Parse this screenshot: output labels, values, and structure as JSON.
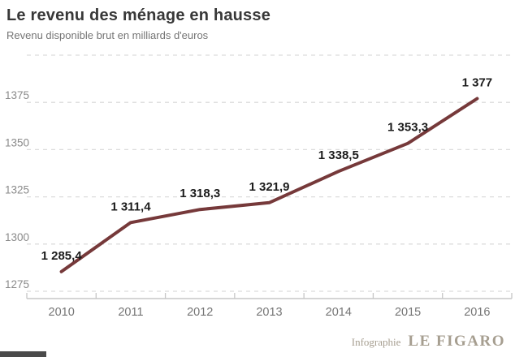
{
  "header": {
    "title": "Le revenu des ménage en hausse",
    "subtitle": "Revenu disponible brut en milliards d'euros"
  },
  "chart_data": {
    "type": "line",
    "title": "Le revenu des ménage en hausse",
    "subtitle": "Revenu disponible brut en milliards d'euros",
    "unit": "milliards d'euros",
    "categories": [
      "2010",
      "2011",
      "2012",
      "2013",
      "2014",
      "2015",
      "2016"
    ],
    "values": [
      1285.4,
      1311.4,
      1318.3,
      1321.9,
      1338.5,
      1353.3,
      1377
    ],
    "value_labels": [
      "1 285,4",
      "1 311,4",
      "1 318,3",
      "1 321,9",
      "1 338,5",
      "1 353,3",
      "1 377"
    ],
    "ylim": [
      1275,
      1400
    ],
    "y_gridlines": [
      {
        "value": 1400,
        "label": ""
      },
      {
        "value": 1375,
        "label": "1375"
      },
      {
        "value": 1350,
        "label": "1350"
      },
      {
        "value": 1325,
        "label": "1325"
      },
      {
        "value": 1300,
        "label": "1300"
      },
      {
        "value": 1275,
        "label": "1275"
      }
    ],
    "grid": "dashed-horizontal",
    "legend": "none",
    "line_color": "#76393a"
  },
  "footer": {
    "credit": "Infographie",
    "brand": "LE FIGARO"
  },
  "colors": {
    "line": "#76393a",
    "title": "#383838",
    "subtitle": "#757575",
    "axis": "#c7c7c7",
    "grid": "#dcdcdc",
    "tick_label": "#8a8a8a",
    "x_label": "#757575",
    "data_label": "#1c1c1c",
    "brand_text": "#a69e90",
    "bottom_bar": "#4a4a4a",
    "background": "#ffffff"
  }
}
